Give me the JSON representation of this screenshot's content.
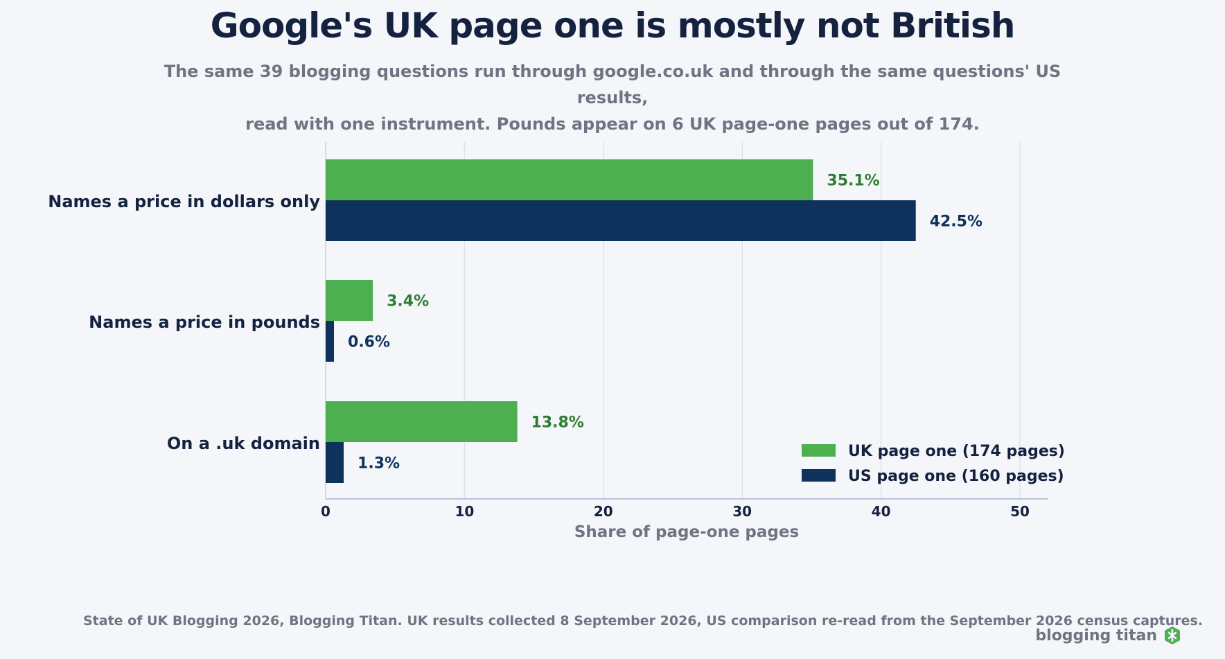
{
  "chart_data": {
    "type": "bar",
    "orientation": "horizontal",
    "title": "Google's UK page one is mostly not British",
    "subtitle_lines": [
      "The same 39 blogging questions run through google.co.uk and through the same questions' US results,",
      "read with one instrument. Pounds appear on 6 UK page-one pages out of 174."
    ],
    "categories": [
      "Names a price in dollars only",
      "Names a price in pounds",
      "On a .uk domain"
    ],
    "series": [
      {
        "name": "UK page one (174 pages)",
        "color": "#4caf50",
        "label_color": "#2e7d32",
        "values": [
          35.1,
          3.4,
          13.8
        ],
        "labels": [
          "35.1%",
          "3.4%",
          "13.8%"
        ]
      },
      {
        "name": "US page one (160 pages)",
        "color": "#0f325c",
        "label_color": "#0f325c",
        "values": [
          42.5,
          0.6,
          1.3
        ],
        "labels": [
          "42.5%",
          "0.6%",
          "1.3%"
        ]
      }
    ],
    "xlabel": "Share of page-one pages",
    "ylabel": "",
    "xlim": [
      0,
      52
    ],
    "xticks": [
      0,
      10,
      20,
      30,
      40,
      50
    ],
    "grid": true,
    "legend_position": "bottom-right"
  },
  "footer": {
    "source": "State of UK Blogging 2026, Blogging Titan. UK results collected 8 September 2026, US comparison re-read from the September 2026 census captures.",
    "brand": "blogging titan",
    "brand_icon": "shield-logo-icon",
    "brand_color": "#4caf50"
  }
}
